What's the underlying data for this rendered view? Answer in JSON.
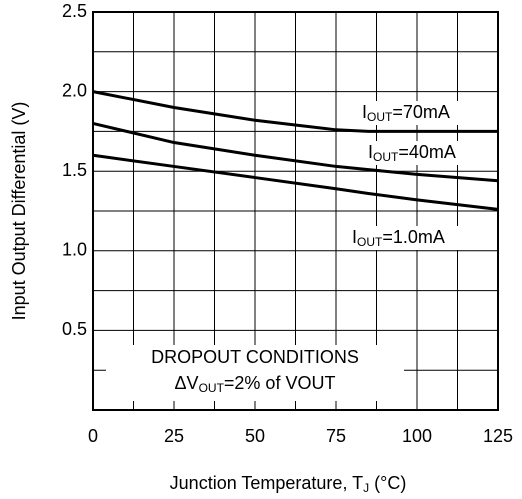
{
  "chart_data": {
    "type": "line",
    "xlabel_parts": [
      "Junction Temperature, T",
      "J",
      " (°C)"
    ],
    "ylabel": "Input Output Differential (V)",
    "x": [
      0,
      25,
      50,
      75,
      85,
      100,
      125
    ],
    "series": [
      {
        "name_parts": [
          "I",
          "OUT",
          "=70mA"
        ],
        "color": "#000000",
        "values": [
          2.0,
          1.9,
          1.82,
          1.76,
          1.75,
          1.75,
          1.75
        ]
      },
      {
        "name_parts": [
          "I",
          "OUT",
          "=40mA"
        ],
        "color": "#000000",
        "values": [
          1.8,
          1.68,
          1.6,
          1.53,
          1.51,
          1.48,
          1.44
        ]
      },
      {
        "name_parts": [
          "I",
          "OUT",
          "=1.0mA"
        ],
        "color": "#000000",
        "values": [
          1.6,
          1.53,
          1.46,
          1.39,
          1.36,
          1.32,
          1.26
        ]
      }
    ],
    "annotation_lines": [
      [
        "DROPOUT CONDITIONS"
      ],
      [
        "ΔV",
        "OUT",
        "=2% of VOUT"
      ]
    ],
    "xlim": [
      0,
      125
    ],
    "xticks": [
      0,
      25,
      50,
      75,
      100,
      125
    ],
    "ylim": [
      0,
      2.5
    ],
    "yticks": [
      {
        "value": 0.5,
        "label": "0.5"
      },
      {
        "value": 1,
        "label": "1.0"
      },
      {
        "value": 1.5,
        "label": "1.5"
      },
      {
        "value": 2,
        "label": "2.0"
      },
      {
        "value": 2.5,
        "label": "2.5"
      }
    ],
    "xgrid": [
      12.5,
      25,
      37.5,
      50,
      62.5,
      75,
      87.5,
      100,
      112.5
    ],
    "ygrid": [
      0.25,
      0.5,
      0.75,
      1,
      1.25,
      1.5,
      1.75,
      2,
      2.25
    ],
    "grid": true
  }
}
